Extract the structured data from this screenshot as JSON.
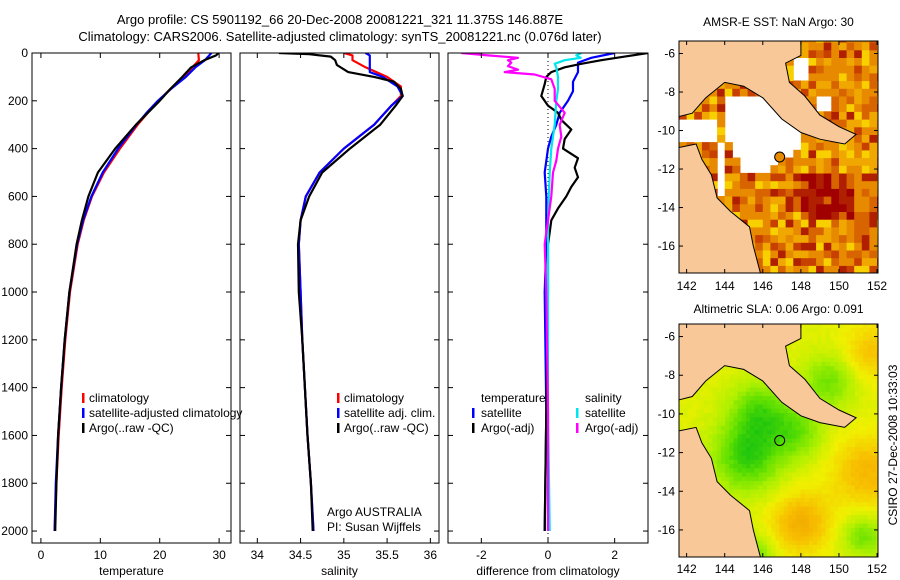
{
  "header": {
    "title_line1": "Argo profile: CS 5901192_66 20-Dec-2008 20081221_321 11.375S 146.887E",
    "title_line2": "Climatology: CARS2006. Satellite-adjusted climatology: synTS_20081221.nc (0.076d later)"
  },
  "annotation": {
    "line1": "Argo AUSTRALIA",
    "line2": "PI: Susan Wijffels"
  },
  "footer_stamp": "CSIRO 27-Dec-2008 10:33:03",
  "colors": {
    "climatology": "#ff0000",
    "satellite": "#0000ff",
    "argo": "#000000",
    "sal_satellite": "#00e5ee",
    "sal_argo": "#ff00ff",
    "land": "#f8c898"
  },
  "chart_data": [
    {
      "type": "line",
      "xlabel": "temperature",
      "ylabel": "",
      "xlim": [
        -1.5,
        32
      ],
      "ylim": [
        0,
        2050
      ],
      "y_reversed": true,
      "xticks": [
        0,
        10,
        20,
        30
      ],
      "yticks": [
        0,
        200,
        400,
        600,
        800,
        1000,
        1200,
        1400,
        1600,
        1800,
        2000
      ],
      "legend": {
        "placement": "lower-middle",
        "entries": [
          "climatology",
          "satellite-adjusted climatology",
          "Argo(..raw -QC)"
        ]
      },
      "series": [
        {
          "name": "climatology",
          "color": "#ff0000",
          "depth": [
            0,
            30,
            60,
            100,
            150,
            200,
            250,
            300,
            400,
            500,
            600,
            700,
            800,
            1000,
            1200,
            1400,
            1600,
            1800,
            2000
          ],
          "values": [
            26.5,
            26.6,
            25.5,
            24.0,
            21.8,
            19.8,
            18.0,
            16.3,
            13.3,
            10.6,
            8.6,
            7.2,
            6.2,
            4.9,
            4.1,
            3.5,
            3.0,
            2.6,
            2.3
          ]
        },
        {
          "name": "satellite-adjusted climatology",
          "color": "#0000ff",
          "depth": [
            0,
            30,
            60,
            100,
            150,
            200,
            250,
            300,
            400,
            500,
            600,
            700,
            800,
            1000,
            1200,
            1400,
            1600,
            1800,
            2000
          ],
          "values": [
            28.7,
            27.6,
            26.0,
            24.4,
            21.9,
            19.7,
            17.8,
            16.1,
            13.0,
            10.4,
            8.5,
            7.1,
            6.1,
            4.8,
            4.0,
            3.4,
            2.9,
            2.5,
            2.3
          ]
        },
        {
          "name": "Argo(..raw -QC)",
          "color": "#000000",
          "depth": [
            0,
            10,
            30,
            60,
            100,
            150,
            200,
            250,
            300,
            400,
            500,
            600,
            700,
            800,
            1000,
            1200,
            1400,
            1600,
            1800,
            2000
          ],
          "values": [
            29.9,
            29.5,
            27.5,
            25.3,
            23.8,
            21.8,
            20.0,
            18.0,
            16.0,
            12.5,
            9.6,
            8.0,
            6.9,
            6.0,
            4.8,
            4.0,
            3.4,
            2.9,
            2.6,
            2.4
          ]
        }
      ]
    },
    {
      "type": "line",
      "xlabel": "salinity",
      "ylabel": "",
      "xlim": [
        33.8,
        36.1
      ],
      "ylim": [
        0,
        2050
      ],
      "y_reversed": true,
      "xticks": [
        34,
        34.5,
        35,
        35.5,
        36
      ],
      "yticks": [
        0,
        200,
        400,
        600,
        800,
        1000,
        1200,
        1400,
        1600,
        1800,
        2000
      ],
      "legend": {
        "placement": "lower-right",
        "entries": [
          "climatology",
          "satellite adj. clim.",
          "Argo(..raw -QC)"
        ]
      },
      "series": [
        {
          "name": "climatology",
          "color": "#ff0000",
          "depth": [
            0,
            10,
            30,
            60,
            100,
            140,
            180,
            220,
            300,
            400,
            500,
            600,
            700,
            800,
            1000,
            1200,
            1400,
            1600,
            1800,
            2000
          ],
          "values": [
            35.0,
            35.1,
            35.1,
            35.25,
            35.5,
            35.66,
            35.66,
            35.55,
            35.35,
            35.0,
            34.72,
            34.56,
            34.5,
            34.48,
            34.5,
            34.52,
            34.55,
            34.58,
            34.62,
            34.65
          ]
        },
        {
          "name": "satellite adj. clim.",
          "color": "#0000ff",
          "depth": [
            0,
            10,
            30,
            60,
            80,
            100,
            140,
            180,
            220,
            300,
            400,
            500,
            600,
            700,
            800,
            1000,
            1200,
            1400,
            1600,
            1800,
            2000
          ],
          "values": [
            35.25,
            35.3,
            35.3,
            35.3,
            35.3,
            35.45,
            35.62,
            35.68,
            35.55,
            35.35,
            35.0,
            34.72,
            34.56,
            34.5,
            34.48,
            34.5,
            34.52,
            34.55,
            34.58,
            34.62,
            34.65
          ]
        },
        {
          "name": "Argo(..raw -QC)",
          "color": "#000000",
          "depth": [
            0,
            5,
            15,
            30,
            50,
            80,
            100,
            120,
            150,
            180,
            220,
            300,
            400,
            500,
            600,
            700,
            800,
            1000,
            1200,
            1400,
            1600,
            1800,
            2000
          ],
          "values": [
            34.25,
            34.6,
            34.85,
            34.9,
            34.92,
            35.05,
            35.35,
            35.58,
            35.66,
            35.68,
            35.6,
            35.42,
            35.07,
            34.75,
            34.6,
            34.5,
            34.47,
            34.48,
            34.52,
            34.55,
            34.58,
            34.62,
            34.64
          ]
        }
      ]
    },
    {
      "type": "line",
      "xlabel": "difference from climatology",
      "ylabel": "",
      "xlim": [
        -3,
        3
      ],
      "ylim": [
        0,
        2050
      ],
      "y_reversed": true,
      "xticks": [
        -2,
        0,
        2
      ],
      "yticks": [
        0,
        200,
        400,
        600,
        800,
        1000,
        1200,
        1400,
        1600,
        1800,
        2000
      ],
      "legend": {
        "placement": "lower-middle",
        "headers": [
          "temperature",
          "salinity"
        ],
        "entries": [
          "satellite",
          "Argo(-adj)",
          "satellite",
          "Argo(-adj)"
        ]
      },
      "series": [
        {
          "name": "temperature satellite",
          "color": "#0000ff",
          "depth": [
            0,
            20,
            40,
            80,
            120,
            160,
            200,
            250,
            300,
            350,
            400,
            500,
            600,
            800,
            1000,
            1500,
            2000
          ],
          "values": [
            2.0,
            1.3,
            0.9,
            0.9,
            0.75,
            0.75,
            0.6,
            0.35,
            0.25,
            0.1,
            0.0,
            -0.1,
            -0.05,
            -0.05,
            -0.1,
            -0.05,
            -0.1
          ]
        },
        {
          "name": "temperature Argo(-adj)",
          "color": "#000000",
          "depth": [
            0,
            15,
            30,
            45,
            60,
            80,
            100,
            130,
            180,
            220,
            250,
            280,
            320,
            360,
            400,
            440,
            480,
            520,
            560,
            600,
            650,
            700,
            750,
            800,
            1000,
            1500,
            2000
          ],
          "values": [
            3.0,
            2.3,
            1.6,
            1.0,
            0.5,
            0.1,
            -0.05,
            -0.1,
            -0.2,
            0.0,
            0.3,
            0.4,
            0.7,
            0.5,
            0.45,
            0.9,
            0.8,
            0.9,
            0.7,
            0.55,
            0.3,
            0.1,
            0.05,
            0.0,
            0.0,
            -0.05,
            -0.1
          ]
        },
        {
          "name": "salinity satellite",
          "color": "#00e5ee",
          "depth": [
            0,
            10,
            20,
            30,
            45,
            60,
            100,
            150,
            200,
            300,
            400,
            500,
            700,
            1000,
            1500,
            2000
          ],
          "values": [
            1.0,
            0.85,
            0.98,
            0.5,
            0.2,
            0.25,
            0.3,
            0.3,
            0.25,
            0.2,
            0.1,
            0.05,
            0.0,
            0.0,
            0.0,
            0.05
          ]
        },
        {
          "name": "salinity Argo(-adj)",
          "color": "#ff00ff",
          "depth": [
            0,
            10,
            20,
            30,
            40,
            55,
            70,
            80,
            90,
            110,
            150,
            200,
            250,
            300,
            350,
            400,
            450,
            500,
            600,
            700,
            800,
            1000,
            1500,
            2000
          ],
          "values": [
            -2.6,
            -1.8,
            -0.9,
            -1.2,
            -1.1,
            -1.2,
            -0.9,
            -1.3,
            -0.4,
            0.1,
            0.2,
            0.2,
            0.5,
            0.35,
            0.4,
            0.3,
            0.25,
            0.15,
            0.1,
            0.0,
            -0.1,
            -0.05,
            0.0,
            0.0
          ]
        }
      ]
    },
    {
      "type": "heatmap",
      "title": "AMSR-E SST: NaN Argo: 30",
      "xlim": [
        141.6,
        152.05
      ],
      "ylim": [
        -17.4,
        -5.35
      ],
      "xticks": [
        142,
        144,
        146,
        148,
        150,
        152
      ],
      "yticks": [
        -6,
        -8,
        -10,
        -12,
        -14,
        -16
      ],
      "argo_position": {
        "lon": 146.887,
        "lat": -11.375
      },
      "palette": [
        "#e88a00",
        "#d86400",
        "#f0a800",
        "#b02000",
        "#a00000",
        "#f8d000",
        "#c84000"
      ]
    },
    {
      "type": "heatmap",
      "title": "Altimetric SLA: 0.06 Argo: 0.091",
      "xlim": [
        141.6,
        152.05
      ],
      "ylim": [
        -17.4,
        -5.35
      ],
      "xticks": [
        142,
        144,
        146,
        148,
        150,
        152
      ],
      "yticks": [
        -6,
        -8,
        -10,
        -12,
        -14,
        -16
      ],
      "argo_position": {
        "lon": 146.887,
        "lat": -11.375
      },
      "palette": [
        "#10c010",
        "#60e000",
        "#b0f000",
        "#f0f000",
        "#f8c000",
        "#f0a000"
      ]
    }
  ]
}
